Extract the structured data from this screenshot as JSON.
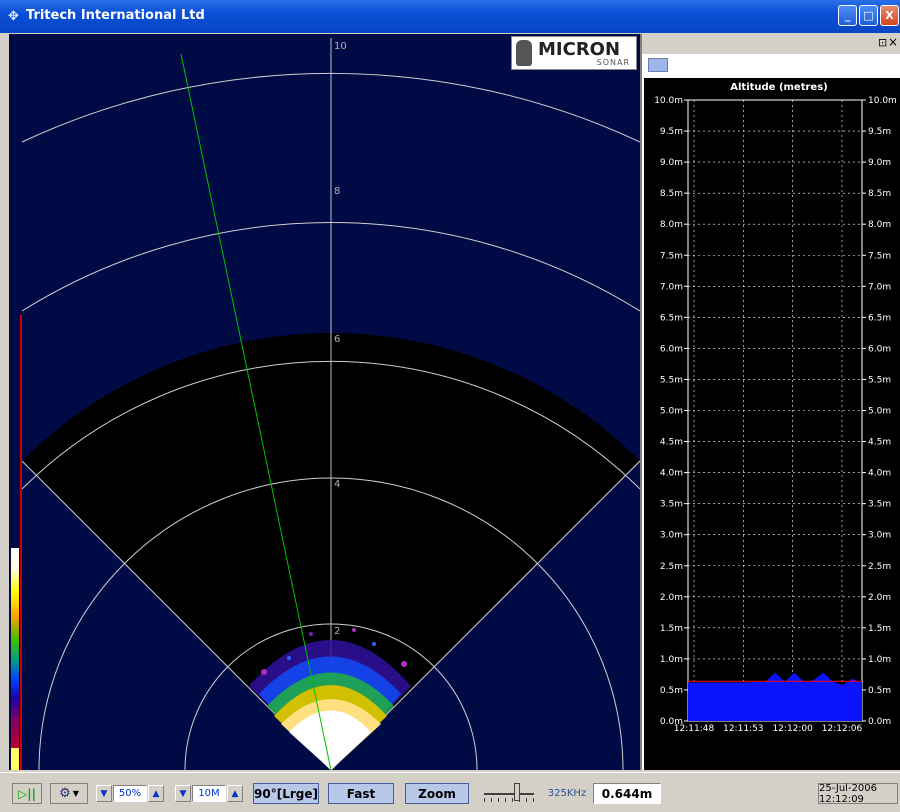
{
  "window": {
    "title": "Tritech International Ltd",
    "minimize_label": "_",
    "maximize_label": "□",
    "close_label": "X"
  },
  "logo": {
    "main": "MICRON",
    "sub": "SONAR"
  },
  "sonar": {
    "range_labels": [
      "10",
      "8",
      "6",
      "4",
      "2"
    ],
    "colors": {
      "background": "#000a45",
      "sector": "#000000",
      "beam_line": "#00c000",
      "ring": "#d0d0d0"
    }
  },
  "side_panel": {
    "pin_label": "⊡",
    "close_label": "×"
  },
  "chart_data": {
    "type": "area",
    "title": "Altitude (metres)",
    "y_ticks": [
      "10.0m",
      "9.5m",
      "9.0m",
      "8.5m",
      "8.0m",
      "7.5m",
      "7.0m",
      "6.5m",
      "6.0m",
      "5.5m",
      "5.0m",
      "4.5m",
      "4.0m",
      "3.5m",
      "3.0m",
      "2.5m",
      "2.0m",
      "1.5m",
      "1.0m",
      "0.5m",
      "0.0m"
    ],
    "x_ticks": [
      "12:11:48",
      "12:11:53",
      "12:12:00",
      "12:12:06"
    ],
    "ylim": [
      0,
      10
    ],
    "grid": true,
    "series": [
      {
        "color": "#0a14ff",
        "values": [
          0.62,
          0.62,
          0.62,
          0.62,
          0.62,
          0.62,
          0.62,
          0.63,
          0.63,
          0.78,
          0.63,
          0.78,
          0.63,
          0.66,
          0.78,
          0.63,
          0.58,
          0.68,
          0.62
        ]
      }
    ],
    "reference_line": {
      "value": 0.64,
      "color": "#ff0000"
    }
  },
  "statusbar": {
    "play_label": "▷||",
    "gain_value": "50%",
    "range_value": "10M",
    "sector_label": "90°[Lrge]",
    "speed_label": "Fast",
    "zoom_label": "Zoom",
    "frequency": "325KHz",
    "altitude_value": "0.644m",
    "datetime": "25-Jul-2006 12:12:09"
  }
}
